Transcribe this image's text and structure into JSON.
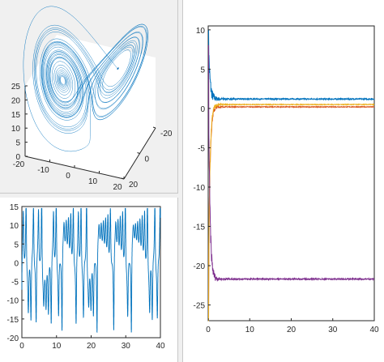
{
  "chart_data": [
    {
      "type": "line",
      "subtype": "3d-attractor",
      "title": "",
      "xlabel": "",
      "ylabel": "",
      "zlabel": "",
      "xlim": [
        -20,
        20
      ],
      "ylim": [
        -20,
        20
      ],
      "zlim": [
        0,
        25
      ],
      "x_ticks": [
        "-20",
        "0",
        "20"
      ],
      "x_tick_minor": [
        "-10",
        "10"
      ],
      "y_ticks": [
        "-20",
        "0",
        "20"
      ],
      "z_ticks": [
        "0",
        "5",
        "10",
        "15",
        "20",
        "25"
      ],
      "color": "#0072bd",
      "grid": false
    },
    {
      "type": "line",
      "title": "",
      "xlabel": "",
      "ylabel": "",
      "xlim": [
        0,
        40
      ],
      "ylim": [
        -20,
        15
      ],
      "x_ticks": [
        "0",
        "10",
        "20",
        "30",
        "40"
      ],
      "y_ticks": [
        "15",
        "10",
        "5",
        "0",
        "-5",
        "-10",
        "-15",
        "-20"
      ],
      "series": [
        {
          "color": "#0072bd",
          "amplitude_range": [
            -18,
            14
          ]
        }
      ],
      "grid": false
    },
    {
      "type": "line",
      "title": "",
      "xlabel": "",
      "ylabel": "",
      "xlim": [
        0,
        40
      ],
      "ylim": [
        -27,
        10.5
      ],
      "x_ticks": [
        "0",
        "10",
        "20",
        "30",
        "40"
      ],
      "y_ticks": [
        "10",
        "5",
        "0",
        "-5",
        "-10",
        "-15",
        "-20",
        "-25"
      ],
      "series": [
        {
          "color": "#0072bd",
          "start": 10,
          "steady": 1.2
        },
        {
          "color": "#d95319",
          "start": -27,
          "steady": 0.2
        },
        {
          "color": "#edb120",
          "start": -27,
          "steady": 0.5
        },
        {
          "color": "#7e2f8e",
          "start": 8,
          "steady": -21.7
        }
      ],
      "grid": false
    }
  ]
}
